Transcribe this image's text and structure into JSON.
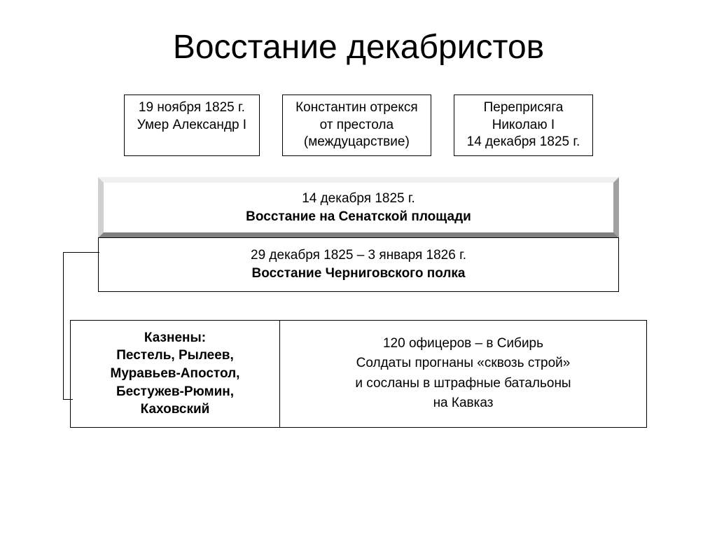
{
  "title": "Восстание декабристов",
  "top_boxes": [
    {
      "line1": "19 ноября 1825 г.",
      "line2": "Умер Александр I"
    },
    {
      "line1": "Константин отрекся",
      "line2": "от престола",
      "line3": "(междуцарствие)"
    },
    {
      "line1": "Переприсяга",
      "line2": "Николаю I",
      "line3": "14 декабря 1825 г."
    }
  ],
  "mid_boxes": {
    "beveled": {
      "line1": "14 декабря 1825 г.",
      "line2": "Восстание на Сенатской площади"
    },
    "plain": {
      "line1": "29 декабря 1825 – 3 января 1826 г.",
      "line2": "Восстание Черниговского полка"
    }
  },
  "bottom": {
    "left": {
      "line1": "Казнены:",
      "line2": "Пестель, Рылеев,",
      "line3": "Муравьев-Апостол,",
      "line4": "Бестужев-Рюмин,",
      "line5": "Каховский"
    },
    "right": {
      "line1": "120 офицеров – в Сибирь",
      "line2": "Солдаты прогнаны «сквозь строй»",
      "line3": "и сосланы в штрафные батальоны",
      "line4": "на Кавказ"
    }
  },
  "styling": {
    "background_color": "#ffffff",
    "text_color": "#000000",
    "box_border_color": "#000000",
    "bevel_colors": {
      "top": "#f0f0f0",
      "left": "#d0d0d0",
      "right": "#a0a0a0",
      "bottom": "#808080"
    },
    "title_fontsize": 48,
    "body_fontsize": 19,
    "font_family": "Arial"
  }
}
